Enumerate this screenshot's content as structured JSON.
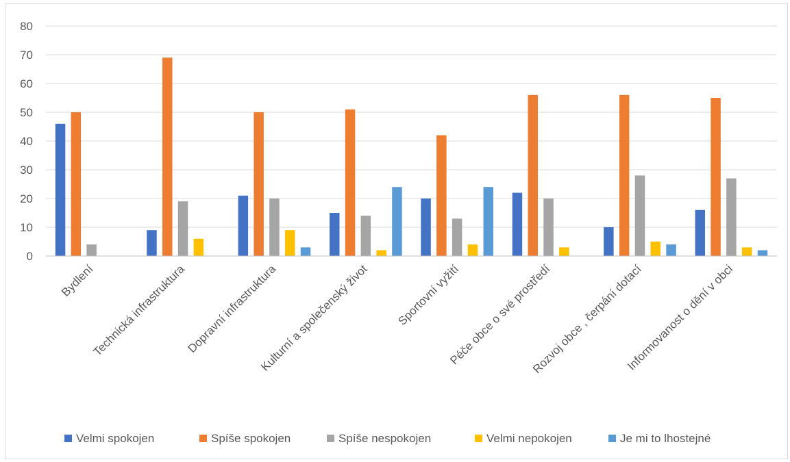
{
  "chart_data": {
    "type": "bar",
    "title": "",
    "xlabel": "",
    "ylabel": "",
    "ylim": [
      0,
      80
    ],
    "yticks": [
      0,
      10,
      20,
      30,
      40,
      50,
      60,
      70,
      80
    ],
    "grid": true,
    "legend_position": "bottom",
    "categories": [
      "Bydlení",
      "Technická infrastruktura",
      "Dopravní infrastruktura",
      "Kulturní a společenský život",
      "Sportovní vyžití",
      "Péče obce o své prostředí",
      "Rozvoj obce , čerpání dotací",
      "Informovanost o dění v obci"
    ],
    "series": [
      {
        "name": "Velmi spokojen",
        "color": "#4472C4",
        "values": [
          46,
          9,
          21,
          15,
          20,
          22,
          10,
          16
        ]
      },
      {
        "name": "Spíše spokojen",
        "color": "#ED7D31",
        "values": [
          50,
          69,
          50,
          51,
          42,
          56,
          56,
          55
        ]
      },
      {
        "name": "Spíše nespokojen",
        "color": "#A5A5A5",
        "values": [
          4,
          19,
          20,
          14,
          13,
          20,
          28,
          27
        ]
      },
      {
        "name": "Velmi nepokojen",
        "color": "#FFC000",
        "values": [
          0,
          6,
          9,
          2,
          4,
          3,
          5,
          3
        ]
      },
      {
        "name": "Je mi to lhostejné",
        "color": "#5B9BD5",
        "values": [
          0,
          0,
          3,
          24,
          24,
          0,
          4,
          2
        ]
      }
    ]
  }
}
